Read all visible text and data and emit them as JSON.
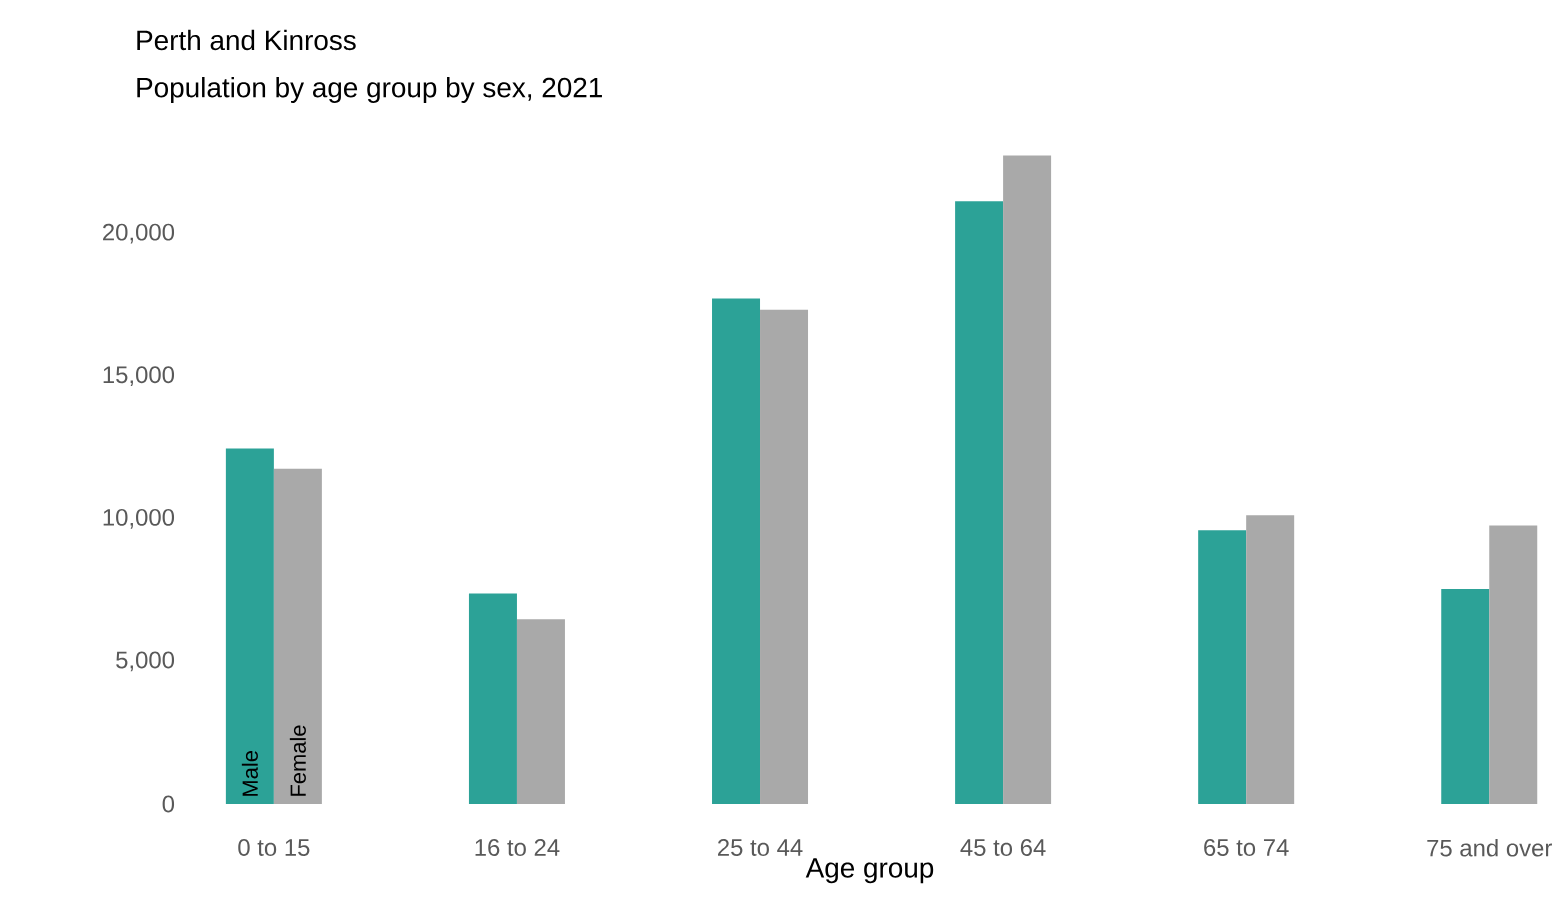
{
  "chart_data": {
    "type": "bar",
    "title": "Perth and Kinross",
    "subtitle": "Population by age group by sex, 2021",
    "xlabel": "Age group",
    "categories": [
      "0 to 15",
      "16 to 24",
      "25 to 44",
      "45 to 64",
      "65 to 74",
      "75 and over"
    ],
    "series": [
      {
        "name": "Male",
        "color": "#2ca297",
        "values": [
          12460,
          7380,
          17720,
          21130,
          9600,
          7540
        ]
      },
      {
        "name": "Female",
        "color": "#a9a9a9",
        "values": [
          11750,
          6480,
          17330,
          22740,
          10120,
          9760
        ]
      }
    ],
    "ylim": [
      0,
      23000
    ],
    "yticks": [
      0,
      {
        "value": 5000,
        "label": "5,000"
      },
      {
        "value": 10000,
        "label": "10,000"
      },
      {
        "value": 15000,
        "label": "15,000"
      },
      {
        "value": 20000,
        "label": "20,000"
      }
    ],
    "grid": false,
    "legend": false
  }
}
